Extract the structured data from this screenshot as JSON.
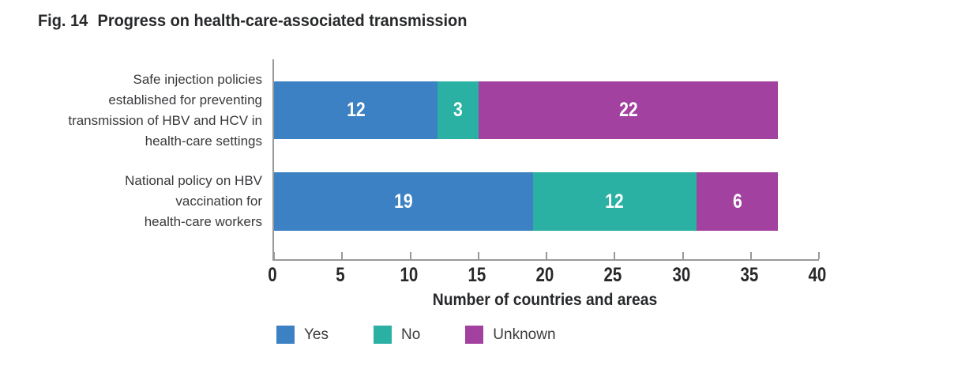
{
  "figure": {
    "title_prefix": "Fig. 14",
    "title": "Progress on health-care-associated transmission"
  },
  "chart_data": {
    "type": "bar",
    "orientation": "horizontal",
    "stacked": true,
    "categories": [
      "Safe injection policies\nestablished for preventing\ntransmission of HBV and HCV in\nhealth-care settings",
      "National policy on HBV\nvaccination for\nhealth-care workers"
    ],
    "series": [
      {
        "name": "Yes",
        "color": "#3b81c3",
        "values": [
          12,
          19
        ]
      },
      {
        "name": "No",
        "color": "#2ab1a3",
        "values": [
          3,
          12
        ]
      },
      {
        "name": "Unknown",
        "color": "#a2419f",
        "values": [
          22,
          6
        ]
      }
    ],
    "xlabel": "Number of countries and areas",
    "xlim": [
      0,
      40
    ],
    "xticks": [
      0,
      5,
      10,
      15,
      20,
      25,
      30,
      35,
      40
    ],
    "grid": false,
    "legend_position": "bottom"
  },
  "colors": {
    "axis": "#97999b",
    "title_text": "#27282a",
    "category_text": "#38393b",
    "value_text": "#ffffff",
    "background": "#ffffff"
  }
}
